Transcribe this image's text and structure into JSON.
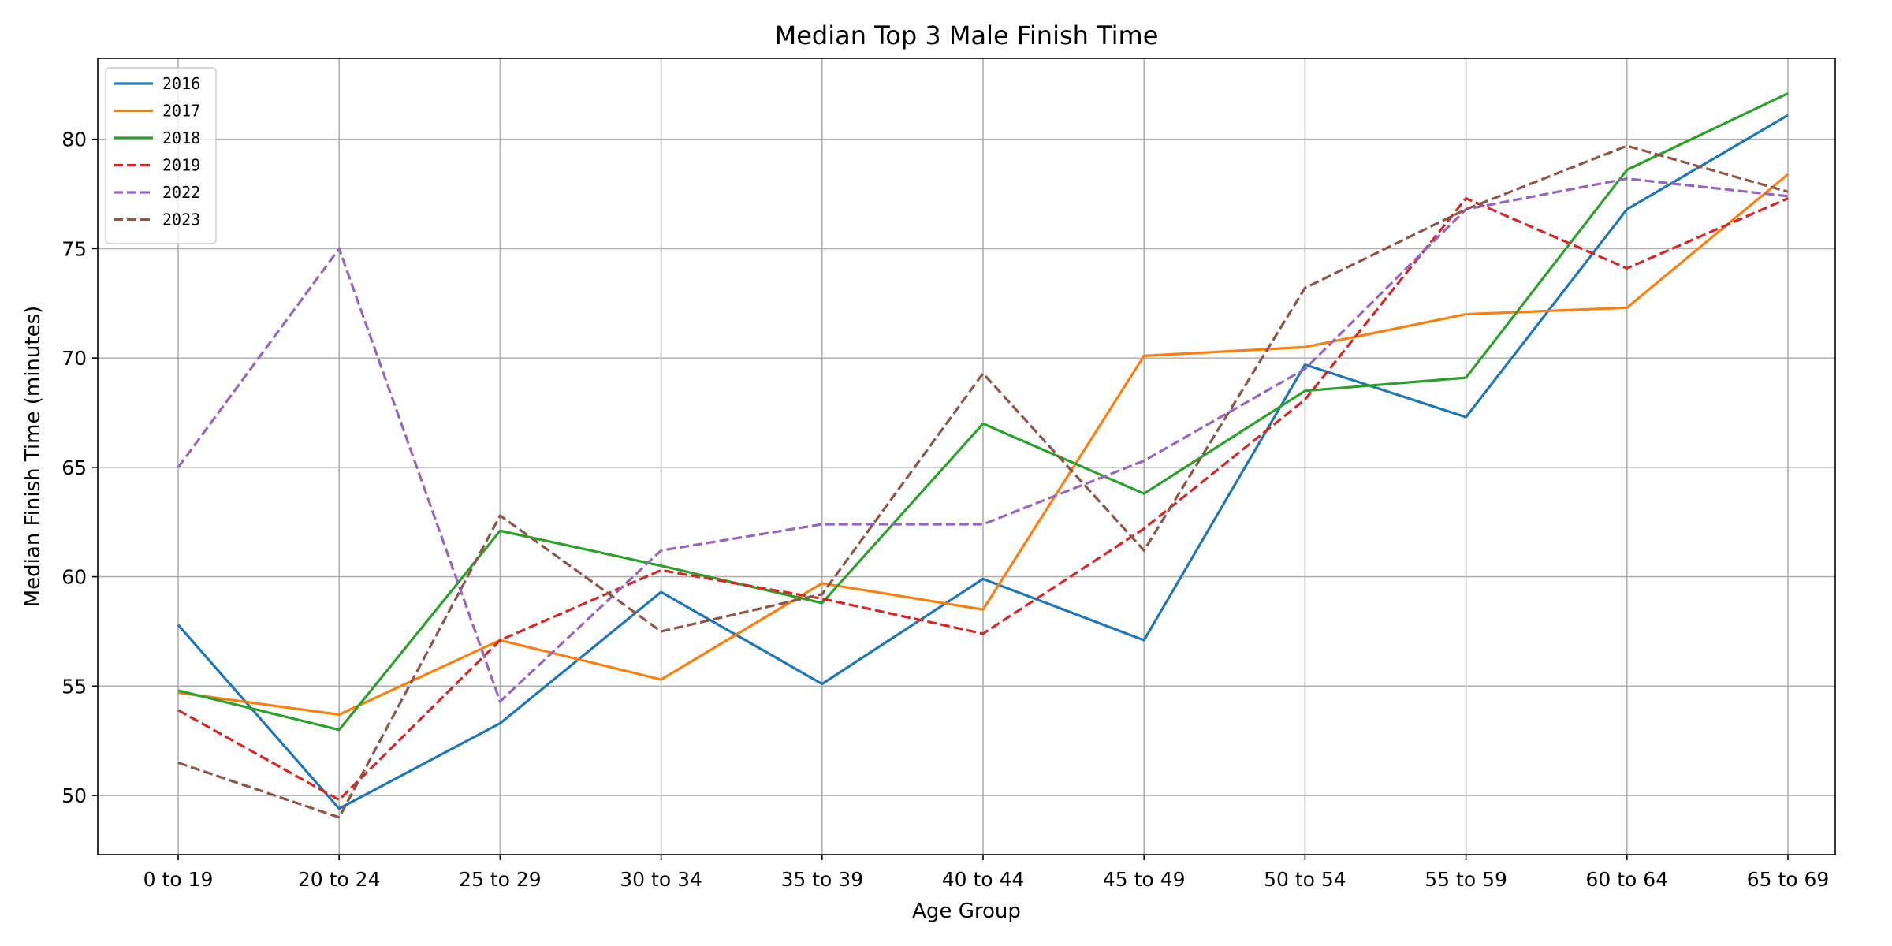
{
  "chart_data": {
    "type": "line",
    "title": "Median Top 3 Male Finish Time",
    "xlabel": "Age Group",
    "ylabel": "Median Finish Time (minutes)",
    "categories": [
      "0 to 19",
      "20 to 24",
      "25 to 29",
      "30 to 34",
      "35 to 39",
      "40 to 44",
      "45 to 49",
      "50 to 54",
      "55 to 59",
      "60 to 64",
      "65 to 69"
    ],
    "ylim": [
      47.3,
      83.7
    ],
    "yticks": [
      50,
      55,
      60,
      65,
      70,
      75,
      80
    ],
    "grid": true,
    "legend_position": "top-left",
    "series": [
      {
        "name": "2016",
        "color": "#1f77b4",
        "dashed": false,
        "values": [
          57.8,
          49.4,
          53.3,
          59.3,
          55.1,
          59.9,
          57.1,
          69.7,
          67.3,
          76.8,
          81.1
        ]
      },
      {
        "name": "2017",
        "color": "#ff7f0e",
        "dashed": false,
        "values": [
          54.7,
          53.7,
          57.1,
          55.3,
          59.7,
          58.5,
          70.1,
          70.5,
          72.0,
          72.3,
          78.4
        ]
      },
      {
        "name": "2018",
        "color": "#2ca02c",
        "dashed": false,
        "values": [
          54.8,
          53.0,
          62.1,
          60.5,
          58.8,
          67.0,
          63.8,
          68.5,
          69.1,
          78.6,
          82.1
        ]
      },
      {
        "name": "2019",
        "color": "#d62728",
        "dashed": true,
        "values": [
          53.9,
          49.8,
          57.1,
          60.3,
          59.0,
          57.4,
          62.2,
          68.1,
          77.3,
          74.1,
          77.3
        ]
      },
      {
        "name": "2022",
        "color": "#9467bd",
        "dashed": true,
        "values": [
          65.0,
          75.0,
          54.3,
          61.2,
          62.4,
          62.4,
          65.3,
          69.5,
          76.8,
          78.2,
          77.4
        ]
      },
      {
        "name": "2023",
        "color": "#8c564b",
        "dashed": true,
        "values": [
          51.5,
          49.0,
          62.8,
          57.5,
          59.2,
          69.3,
          61.2,
          73.2,
          76.8,
          79.7,
          77.6
        ]
      }
    ]
  }
}
